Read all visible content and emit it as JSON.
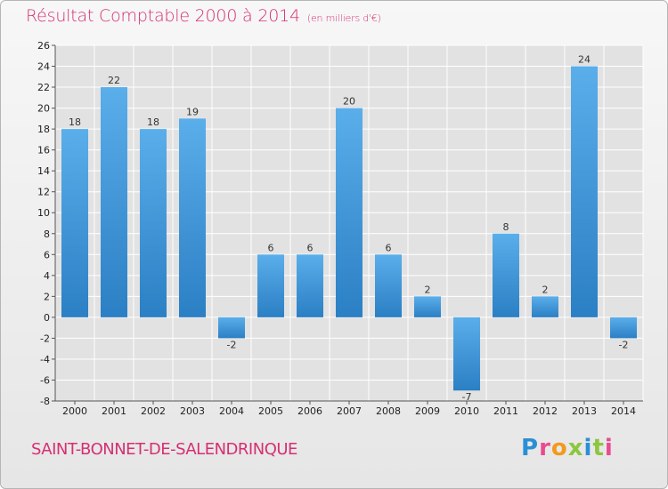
{
  "title": "Résultat Comptable 2000 à 2014",
  "subtitle": "(en milliers d'€)",
  "commune": "SAINT-BONNET-DE-SALENDRINQUE",
  "logo": {
    "letters": [
      "P",
      "r",
      "o",
      "x",
      "i",
      "t",
      "i"
    ]
  },
  "colors": {
    "title": "#d62f72",
    "bar_light": "#5aaeea",
    "bar_dark": "#2b7fc4",
    "grid": "#ffffff"
  },
  "chart_data": {
    "type": "bar",
    "title": "Résultat Comptable 2000 à 2014",
    "subtitle": "(en milliers d'€)",
    "categories": [
      "2000",
      "2001",
      "2002",
      "2003",
      "2004",
      "2005",
      "2006",
      "2007",
      "2008",
      "2009",
      "2010",
      "2011",
      "2012",
      "2013",
      "2014"
    ],
    "values": [
      18,
      22,
      18,
      19,
      -2,
      6,
      6,
      20,
      6,
      2,
      -7,
      8,
      2,
      24,
      -2
    ],
    "ylim": [
      -8,
      26
    ],
    "yticks": [
      -8,
      -6,
      -4,
      -2,
      0,
      2,
      4,
      6,
      8,
      10,
      12,
      14,
      16,
      18,
      20,
      22,
      24,
      26
    ],
    "grid": true
  }
}
